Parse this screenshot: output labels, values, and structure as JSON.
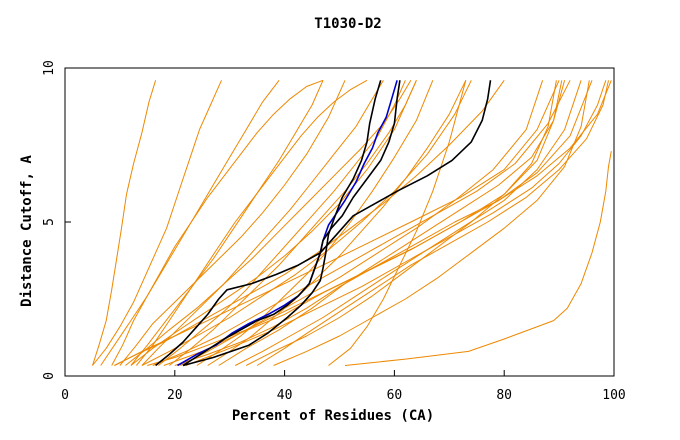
{
  "chart_data": {
    "type": "line",
    "title": "T1030-D2",
    "xlabel": "Percent of Residues (CA)",
    "ylabel": "Distance Cutoff, A",
    "xlim": [
      0,
      100
    ],
    "ylim": [
      0,
      10
    ],
    "xticks": [
      0,
      20,
      40,
      60,
      80,
      100
    ],
    "yticks": [
      0,
      5,
      10
    ],
    "grid": false,
    "legend": "none",
    "colors": {
      "orange": "#ee8800",
      "black": "#000000",
      "blue": "#0000cc"
    },
    "series": [
      {
        "color": "orange",
        "x": [
          5.0,
          6.2,
          7.5,
          8.5,
          9.4,
          10.3,
          11.2,
          12.5,
          14.0,
          15.3,
          16.5
        ],
        "y": [
          0.34,
          1.0,
          1.8,
          2.8,
          3.8,
          4.8,
          5.9,
          6.9,
          7.9,
          8.9,
          9.6
        ]
      },
      {
        "color": "orange",
        "x": [
          5.0,
          7.5,
          10.0,
          12.5,
          14.5,
          16.5,
          18.5,
          20.0,
          21.5,
          23.0,
          24.5,
          26.5,
          27.5,
          28.5
        ],
        "y": [
          0.34,
          0.9,
          1.6,
          2.4,
          3.2,
          4.0,
          4.8,
          5.6,
          6.4,
          7.2,
          8.0,
          8.8,
          9.2,
          9.6
        ]
      },
      {
        "color": "orange",
        "x": [
          8.5,
          10.5,
          12.5,
          15.0,
          17.5,
          20.0,
          23.0,
          26.0,
          29.0,
          32.0,
          35.0,
          38.0,
          41.0,
          44.0,
          47.0
        ],
        "y": [
          0.34,
          1.0,
          1.8,
          2.6,
          3.4,
          4.2,
          5.0,
          5.8,
          6.5,
          7.2,
          7.9,
          8.5,
          9.0,
          9.4,
          9.6
        ]
      },
      {
        "color": "orange",
        "x": [
          10.0,
          13.0,
          16.0,
          20.0,
          24.0,
          28.0,
          32.0,
          36.0,
          40.0,
          44.0,
          48.0,
          51.0
        ],
        "y": [
          0.34,
          1.0,
          1.7,
          2.4,
          3.1,
          3.8,
          4.5,
          5.3,
          6.2,
          7.2,
          8.4,
          9.6
        ]
      },
      {
        "color": "orange",
        "x": [
          12.0,
          16.0,
          20.0,
          25.0,
          30.0,
          35.0,
          40.0,
          45.0,
          50.0,
          55.0,
          60.0,
          64.0
        ],
        "y": [
          0.34,
          0.9,
          1.4,
          2.0,
          2.6,
          3.2,
          3.9,
          4.7,
          5.6,
          6.7,
          8.0,
          9.6
        ]
      },
      {
        "color": "orange",
        "x": [
          14.0,
          19.0,
          24.0,
          30.0,
          36.0,
          42.0,
          48.0,
          54.0,
          60.0,
          66.0,
          71.0,
          74.0
        ],
        "y": [
          0.34,
          0.8,
          1.3,
          1.9,
          2.6,
          3.3,
          4.1,
          5.0,
          6.0,
          7.2,
          8.5,
          9.6
        ]
      },
      {
        "color": "orange",
        "x": [
          9.0,
          14.0,
          20.0,
          26.0,
          33.0,
          40.0,
          47.0,
          55.0,
          63.0,
          72.0,
          80.0,
          86.0,
          90.0
        ],
        "y": [
          0.34,
          0.8,
          1.3,
          1.8,
          2.4,
          3.0,
          3.6,
          4.3,
          5.0,
          5.8,
          6.7,
          8.0,
          9.6
        ]
      },
      {
        "color": "orange",
        "x": [
          16.0,
          22.0,
          28.0,
          34.0,
          40.0,
          47.0,
          54.0,
          61.0,
          68.0,
          75.0,
          82.0,
          88.0,
          92.0
        ],
        "y": [
          0.34,
          0.8,
          1.3,
          1.9,
          2.5,
          3.2,
          3.9,
          4.6,
          5.3,
          6.0,
          6.9,
          8.2,
          9.6
        ]
      },
      {
        "color": "orange",
        "x": [
          18.0,
          25.0,
          32.0,
          40.0,
          47.0,
          55.0,
          63.0,
          71.0,
          79.0,
          86.0,
          92.0,
          96.0
        ],
        "y": [
          0.34,
          0.8,
          1.4,
          2.0,
          2.7,
          3.4,
          4.1,
          4.9,
          5.7,
          6.6,
          7.8,
          9.6
        ]
      },
      {
        "color": "orange",
        "x": [
          20.0,
          26.0,
          32.0,
          38.0,
          44.0,
          50.0,
          57.0,
          64.0,
          71.0,
          79.0,
          86.0,
          92.0,
          97.0,
          99.5
        ],
        "y": [
          0.34,
          0.7,
          1.1,
          1.6,
          2.2,
          2.9,
          3.6,
          4.3,
          5.0,
          5.7,
          6.5,
          7.4,
          8.5,
          9.6
        ]
      },
      {
        "color": "orange",
        "x": [
          22.0,
          30.0,
          38.0,
          46.0,
          54.0,
          62.0,
          70.0,
          78.0,
          85.0,
          90.0,
          94.0,
          97.0,
          98.5
        ],
        "y": [
          0.34,
          0.9,
          1.5,
          2.2,
          2.9,
          3.7,
          4.5,
          5.3,
          6.1,
          6.9,
          7.8,
          8.8,
          9.6
        ]
      },
      {
        "color": "orange",
        "x": [
          11.0,
          15.0,
          19.0,
          24.0,
          29.0,
          34.0,
          39.0,
          44.0,
          49.0,
          54.0,
          58.0,
          61.0,
          63.0
        ],
        "y": [
          0.34,
          0.9,
          1.5,
          2.2,
          3.0,
          3.8,
          4.7,
          5.6,
          6.5,
          7.4,
          8.2,
          9.0,
          9.6
        ]
      },
      {
        "color": "orange",
        "x": [
          13.0,
          16.0,
          19.0,
          22.0,
          25.0,
          28.0,
          31.0,
          34.0,
          37.0,
          40.0,
          43.0,
          46.0,
          49.0,
          52.0,
          55.0
        ],
        "y": [
          0.34,
          1.0,
          1.8,
          2.6,
          3.4,
          4.2,
          5.0,
          5.7,
          6.4,
          7.1,
          7.8,
          8.4,
          8.9,
          9.3,
          9.6
        ]
      },
      {
        "color": "orange",
        "x": [
          17.0,
          21.0,
          25.0,
          29.0,
          33.0,
          37.0,
          41.0,
          45.0,
          49.0,
          53.0,
          57.0,
          60.0,
          62.0
        ],
        "y": [
          0.34,
          0.9,
          1.5,
          2.1,
          2.8,
          3.6,
          4.4,
          5.2,
          6.0,
          6.9,
          7.8,
          8.8,
          9.6
        ]
      },
      {
        "color": "orange",
        "x": [
          24.0,
          28.0,
          32.0,
          36.0,
          40.0,
          44.0,
          48.0,
          52.0,
          56.0,
          60.0,
          64.0,
          67.0
        ],
        "y": [
          0.34,
          0.8,
          1.3,
          1.9,
          2.6,
          3.3,
          4.1,
          5.0,
          6.0,
          7.1,
          8.3,
          9.6
        ]
      },
      {
        "color": "orange",
        "x": [
          9.0,
          13.0,
          18.0,
          23.0,
          28.0,
          34.0,
          40.0,
          46.0,
          52.0,
          58.0,
          64.0,
          70.0,
          76.0,
          80.0
        ],
        "y": [
          0.34,
          0.7,
          1.1,
          1.6,
          2.1,
          2.7,
          3.3,
          4.0,
          4.8,
          5.6,
          6.5,
          7.5,
          8.6,
          9.6
        ]
      },
      {
        "color": "orange",
        "x": [
          31.0,
          36.0,
          41.0,
          47.0,
          53.0,
          59.0,
          66.0,
          73.0,
          80.0,
          86.0,
          91.0,
          94.0
        ],
        "y": [
          0.34,
          0.8,
          1.3,
          1.9,
          2.6,
          3.3,
          4.1,
          4.9,
          5.7,
          6.7,
          8.0,
          9.6
        ]
      },
      {
        "color": "orange",
        "x": [
          15.0,
          20.0,
          26.0,
          33.0,
          40.0,
          48.0,
          56.0,
          64.0,
          72.0,
          80.0,
          86.0,
          89.0,
          90.5
        ],
        "y": [
          0.34,
          0.6,
          1.0,
          1.5,
          2.1,
          2.8,
          3.5,
          4.2,
          5.0,
          5.9,
          7.0,
          8.3,
          9.6
        ]
      },
      {
        "color": "orange",
        "x": [
          35.0,
          40.0,
          45.0,
          51.0,
          57.0,
          63.0,
          70.0,
          77.0,
          84.0,
          90.0,
          95.0,
          98.0,
          99.0
        ],
        "y": [
          0.34,
          0.9,
          1.5,
          2.2,
          2.9,
          3.6,
          4.3,
          5.0,
          5.8,
          6.7,
          7.7,
          8.8,
          9.6
        ]
      },
      {
        "color": "orange",
        "x": [
          12.0,
          15.0,
          18.0,
          21.0,
          24.0,
          27.0,
          30.0,
          33.0,
          36.0,
          39.0,
          42.0,
          45.0,
          47.0
        ],
        "y": [
          0.34,
          1.0,
          1.7,
          2.4,
          3.1,
          3.8,
          4.6,
          5.4,
          6.2,
          7.0,
          7.9,
          8.8,
          9.6
        ]
      },
      {
        "color": "orange",
        "x": [
          26.0,
          30.0,
          34.0,
          38.0,
          42.0,
          46.0,
          50.0,
          54.0,
          58.0,
          62.0,
          66.0,
          70.0,
          73.0
        ],
        "y": [
          0.34,
          0.8,
          1.3,
          1.9,
          2.5,
          3.2,
          3.9,
          4.7,
          5.5,
          6.4,
          7.4,
          8.5,
          9.6
        ]
      },
      {
        "color": "orange",
        "x": [
          28.0,
          33.0,
          39.0,
          45.0,
          51.0,
          58.0,
          65.0,
          72.0,
          79.0,
          85.0,
          89.0,
          91.0
        ],
        "y": [
          0.34,
          0.9,
          1.5,
          2.2,
          3.0,
          3.8,
          4.6,
          5.4,
          6.2,
          7.1,
          8.3,
          9.6
        ]
      },
      {
        "color": "orange",
        "x": [
          19.0,
          23.0,
          27.0,
          31.0,
          35.0,
          39.0,
          43.0,
          47.0,
          51.0,
          55.0,
          59.0,
          62.0,
          64.0
        ],
        "y": [
          0.34,
          0.9,
          1.5,
          2.2,
          2.9,
          3.6,
          4.4,
          5.2,
          6.0,
          6.9,
          7.9,
          8.8,
          9.6
        ]
      },
      {
        "color": "orange",
        "x": [
          6.5,
          9.0,
          12.0,
          15.0,
          18.0,
          21.0,
          24.0,
          27.0,
          30.0,
          33.0,
          36.0,
          39.0
        ],
        "y": [
          0.34,
          1.0,
          1.8,
          2.6,
          3.5,
          4.4,
          5.3,
          6.2,
          7.1,
          8.0,
          8.9,
          9.6
        ]
      },
      {
        "color": "orange",
        "x": [
          21.0,
          26.0,
          31.0,
          37.0,
          43.0,
          50.0,
          57.0,
          64.0,
          71.0,
          78.0,
          84.0,
          87.0
        ],
        "y": [
          0.34,
          0.8,
          1.3,
          1.9,
          2.5,
          3.2,
          4.0,
          4.8,
          5.7,
          6.7,
          8.0,
          9.6
        ]
      },
      {
        "color": "orange",
        "x": [
          33.0,
          38.0,
          44.0,
          50.0,
          56.0,
          62.0,
          68.0,
          74.0,
          80.0,
          85.0,
          88.0,
          89.5
        ],
        "y": [
          0.34,
          0.8,
          1.3,
          1.9,
          2.6,
          3.4,
          4.2,
          5.0,
          5.9,
          6.9,
          8.1,
          9.6
        ]
      },
      {
        "color": "orange",
        "x": [
          14.0,
          17.0,
          21.0,
          25.0,
          29.0,
          33.0,
          37.0,
          41.0,
          45.0,
          49.0,
          53.0,
          56.0,
          58.0
        ],
        "y": [
          0.34,
          0.9,
          1.6,
          2.3,
          3.0,
          3.8,
          4.6,
          5.4,
          6.3,
          7.2,
          8.1,
          9.0,
          9.6
        ]
      },
      {
        "color": "orange",
        "x": [
          48.0,
          52.0,
          55.0,
          58.0,
          61.0,
          64.0,
          67.0,
          70.0,
          73.0
        ],
        "y": [
          0.34,
          0.9,
          1.6,
          2.5,
          3.6,
          4.7,
          6.0,
          7.6,
          9.6
        ]
      },
      {
        "color": "orange",
        "x": [
          38.0,
          44.0,
          50.0,
          56.0,
          62.0,
          68.0,
          74.0,
          80.0,
          86.0,
          91.0,
          94.0,
          95.5
        ],
        "y": [
          0.34,
          0.8,
          1.3,
          1.9,
          2.5,
          3.2,
          4.0,
          4.8,
          5.7,
          6.8,
          8.1,
          9.6
        ]
      },
      {
        "color": "orange",
        "x": [
          51.0,
          62.0,
          73.5,
          80.0,
          89.0,
          91.5,
          94.0,
          96.0,
          97.5,
          98.5,
          99.0,
          99.5
        ],
        "y": [
          0.34,
          0.55,
          0.8,
          1.2,
          1.8,
          2.2,
          3.0,
          4.0,
          5.0,
          6.0,
          6.8,
          7.3
        ]
      },
      {
        "color": "black",
        "x": [
          16.5,
          19.0,
          21.5,
          24.0,
          26.0,
          28.0,
          29.5,
          34.0,
          38.5,
          42.5,
          46.5,
          49.5,
          52.5,
          55.5,
          60.5,
          66.0,
          70.5,
          74.0,
          76.0,
          77.0,
          77.5
        ],
        "y": [
          0.34,
          0.7,
          1.1,
          1.6,
          2.0,
          2.5,
          2.8,
          3.0,
          3.3,
          3.6,
          4.0,
          4.6,
          5.2,
          5.5,
          6.0,
          6.5,
          7.0,
          7.6,
          8.3,
          9.0,
          9.6
        ]
      },
      {
        "color": "black",
        "x": [
          21.5,
          27.0,
          33.5,
          37.0,
          40.5,
          43.0,
          45.0,
          46.5,
          47.0,
          47.5,
          48.0,
          49.0,
          50.5,
          52.5,
          54.0,
          55.0,
          55.5,
          56.5,
          57.5
        ],
        "y": [
          0.34,
          0.6,
          1.0,
          1.4,
          1.9,
          2.3,
          2.7,
          3.1,
          3.5,
          4.0,
          4.6,
          5.1,
          5.8,
          6.4,
          7.0,
          7.6,
          8.2,
          9.0,
          9.6
        ]
      },
      {
        "color": "black",
        "x": [
          21.5,
          25.5,
          29.0,
          32.0,
          35.0,
          38.0,
          40.5,
          42.5,
          44.5,
          45.5,
          46.5,
          47.0,
          48.5,
          50.5,
          52.5,
          55.0,
          57.5,
          59.0,
          60.0,
          60.5,
          61.0
        ],
        "y": [
          0.34,
          0.8,
          1.2,
          1.5,
          1.8,
          2.0,
          2.3,
          2.6,
          3.0,
          3.5,
          4.0,
          4.4,
          4.8,
          5.2,
          5.8,
          6.4,
          7.0,
          7.6,
          8.2,
          9.0,
          9.6
        ]
      },
      {
        "color": "blue",
        "x": [
          20.5,
          24.0,
          27.5,
          30.5,
          33.5,
          37.0,
          40.0,
          42.5,
          44.5,
          45.5,
          46.5,
          47.0,
          48.0,
          49.5,
          51.0,
          53.0,
          54.5,
          56.0,
          57.0,
          58.5,
          59.5,
          60.5
        ],
        "y": [
          0.34,
          0.7,
          1.0,
          1.4,
          1.7,
          2.0,
          2.3,
          2.6,
          3.0,
          3.5,
          4.0,
          4.4,
          4.9,
          5.3,
          5.7,
          6.3,
          6.9,
          7.4,
          7.9,
          8.4,
          9.0,
          9.6
        ]
      }
    ]
  }
}
